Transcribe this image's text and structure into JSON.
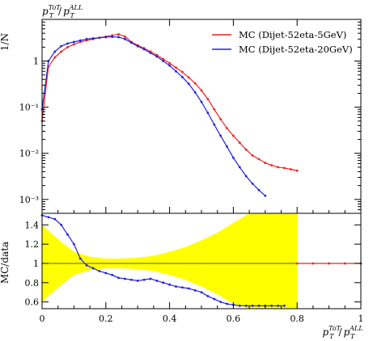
{
  "title": "p_T^ToT / p_T^ALL",
  "colors": {
    "red": "#ee2222",
    "blue": "#2020dd",
    "band": "#ffff00",
    "axis": "#000000"
  },
  "chart_data": [
    {
      "type": "line",
      "panel": "main",
      "xlabel": "p_T^ToT / p_T^ALL",
      "ylabel": "1/N",
      "yscale": "log",
      "xlim": [
        0,
        1
      ],
      "ylim": [
        0.0005,
        8
      ],
      "ytick_labels": [
        "1",
        "10^-1",
        "10^-2",
        "10^-3"
      ],
      "legend_position": "top-right",
      "series": [
        {
          "name": "MC (Dijet-52eta-5GeV)",
          "color": "#ee2222",
          "x": [
            0.0,
            0.02,
            0.04,
            0.06,
            0.08,
            0.1,
            0.12,
            0.14,
            0.16,
            0.18,
            0.2,
            0.22,
            0.24,
            0.26,
            0.28,
            0.3,
            0.32,
            0.34,
            0.36,
            0.38,
            0.4,
            0.42,
            0.44,
            0.46,
            0.48,
            0.5,
            0.52,
            0.54,
            0.56,
            0.58,
            0.6,
            0.62,
            0.64,
            0.66,
            0.68,
            0.7,
            0.72,
            0.74,
            0.76,
            0.78,
            0.8
          ],
          "values": [
            0.05,
            0.75,
            1.2,
            1.6,
            2.0,
            2.3,
            2.6,
            2.8,
            3.0,
            3.2,
            3.4,
            3.6,
            3.8,
            3.4,
            2.6,
            2.2,
            1.9,
            1.6,
            1.35,
            1.1,
            0.9,
            0.72,
            0.58,
            0.44,
            0.33,
            0.23,
            0.15,
            0.09,
            0.055,
            0.035,
            0.024,
            0.017,
            0.012,
            0.009,
            0.0075,
            0.0062,
            0.0055,
            0.005,
            0.0048,
            0.0045,
            0.0042
          ]
        },
        {
          "name": "MC (Dijet-52eta-20GeV)",
          "color": "#2020dd",
          "x": [
            0.0,
            0.02,
            0.04,
            0.06,
            0.08,
            0.1,
            0.12,
            0.14,
            0.16,
            0.18,
            0.2,
            0.22,
            0.24,
            0.26,
            0.28,
            0.3,
            0.32,
            0.34,
            0.36,
            0.38,
            0.4,
            0.42,
            0.44,
            0.46,
            0.48,
            0.5,
            0.52,
            0.54,
            0.56,
            0.58,
            0.6,
            0.62,
            0.64,
            0.66,
            0.68,
            0.7
          ],
          "values": [
            0.09,
            1.0,
            1.6,
            2.1,
            2.4,
            2.6,
            2.8,
            3.0,
            3.1,
            3.2,
            3.3,
            3.35,
            3.3,
            3.0,
            2.5,
            2.1,
            1.8,
            1.5,
            1.25,
            1.0,
            0.8,
            0.6,
            0.45,
            0.32,
            0.21,
            0.13,
            0.075,
            0.042,
            0.024,
            0.014,
            0.008,
            0.005,
            0.0032,
            0.0022,
            0.0016,
            0.0012
          ]
        }
      ]
    },
    {
      "type": "line",
      "panel": "ratio",
      "xlabel": "p_T^ToT / p_T^ALL",
      "ylabel": "MC/data",
      "xlim": [
        0,
        1
      ],
      "ylim": [
        0.53,
        1.52
      ],
      "xtick_labels": [
        "0",
        "0.2",
        "0.4",
        "0.6",
        "0.8",
        "1"
      ],
      "ytick_labels": [
        "0.6",
        "0.8",
        "1",
        "1.2",
        "1.4"
      ],
      "band": {
        "x": [
          0.0,
          0.05,
          0.1,
          0.15,
          0.2,
          0.25,
          0.3,
          0.35,
          0.4,
          0.45,
          0.5,
          0.55,
          0.6,
          0.65,
          0.7,
          0.75,
          0.8
        ],
        "half_width": [
          0.4,
          0.25,
          0.12,
          0.07,
          0.05,
          0.05,
          0.06,
          0.08,
          0.12,
          0.17,
          0.24,
          0.32,
          0.42,
          0.55,
          0.6,
          0.6,
          0.6
        ]
      },
      "series": [
        {
          "name": "MC (Dijet-52eta-5GeV)",
          "color": "#ee2222",
          "x": [
            0.8,
            0.85,
            0.9,
            0.95,
            1.0
          ],
          "values": [
            1.0,
            1.0,
            1.0,
            1.0,
            1.0
          ]
        },
        {
          "name": "MC (Dijet-52eta-20GeV)",
          "color": "#2020dd",
          "x": [
            0.0,
            0.02,
            0.04,
            0.06,
            0.08,
            0.1,
            0.12,
            0.14,
            0.16,
            0.18,
            0.2,
            0.22,
            0.24,
            0.26,
            0.28,
            0.3,
            0.32,
            0.34,
            0.36,
            0.38,
            0.4,
            0.42,
            0.44,
            0.46,
            0.48,
            0.5,
            0.52,
            0.54,
            0.56,
            0.58,
            0.6,
            0.62,
            0.64,
            0.66,
            0.68,
            0.7,
            0.72,
            0.74,
            0.76
          ],
          "values": [
            1.5,
            1.48,
            1.46,
            1.4,
            1.3,
            1.2,
            1.05,
            0.98,
            0.95,
            0.92,
            0.9,
            0.88,
            0.85,
            0.84,
            0.83,
            0.82,
            0.83,
            0.84,
            0.82,
            0.8,
            0.78,
            0.76,
            0.75,
            0.74,
            0.72,
            0.7,
            0.66,
            0.63,
            0.6,
            0.58,
            0.57,
            0.56,
            0.56,
            0.56,
            0.56,
            0.56,
            0.56,
            0.56,
            0.56
          ]
        }
      ]
    }
  ]
}
